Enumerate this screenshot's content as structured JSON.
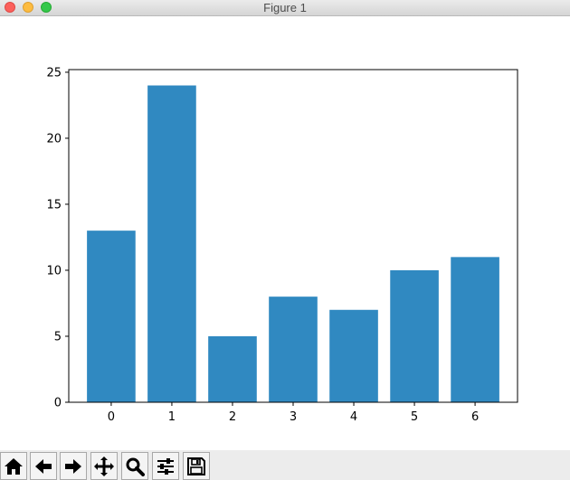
{
  "window": {
    "title": "Figure 1"
  },
  "toolbar": {
    "buttons": [
      {
        "icon": "home-icon"
      },
      {
        "icon": "back-arrow-icon"
      },
      {
        "icon": "forward-arrow-icon"
      },
      {
        "icon": "pan-icon"
      },
      {
        "icon": "zoom-icon"
      },
      {
        "icon": "subplots-config-icon"
      },
      {
        "icon": "save-icon"
      }
    ]
  },
  "chart_data": {
    "type": "bar",
    "categories": [
      "0",
      "1",
      "2",
      "3",
      "4",
      "5",
      "6"
    ],
    "values": [
      13,
      24,
      5,
      8,
      7,
      10,
      11
    ],
    "title": "",
    "xlabel": "",
    "ylabel": "",
    "ylim": [
      0,
      25.2
    ],
    "yticks": [
      "0",
      "5",
      "10",
      "15",
      "20",
      "25"
    ],
    "grid": false,
    "bar_color": "#3089c1"
  }
}
